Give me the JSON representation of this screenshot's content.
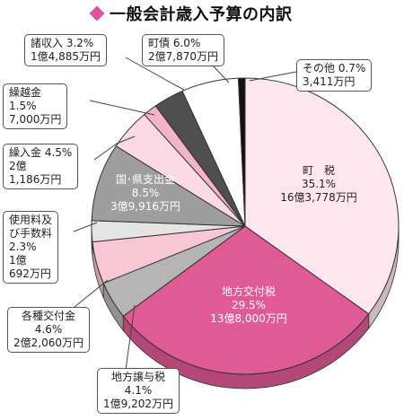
{
  "title": "一般会計歳入予算の内訳",
  "colors": {
    "title_mark": "#e0529a",
    "town_tax": "#fde6ee",
    "local_allocation_tax": "#e05a96",
    "local_transfer_tax": "#b5b5b5",
    "grants": "#f7c7d6",
    "fees": "#e4e4e4",
    "national_pref": "#9e9e9e",
    "transfers": "#fbd9e4",
    "carryover": "#f3b3c9",
    "misc": "#4f4f4f",
    "town_bonds": "#ffffff",
    "other": "#111111",
    "outline": "#333333"
  },
  "chart_data": {
    "type": "pie",
    "title": "一般会計歳入予算の内訳",
    "unit": "%",
    "slices": [
      {
        "name": "町　税",
        "value": 35.1,
        "amount": "16億3,778万円"
      },
      {
        "name": "地方交付税",
        "value": 29.5,
        "amount": "13億8,000万円"
      },
      {
        "name": "地方譲与税",
        "value": 4.1,
        "amount": "1億9,202万円"
      },
      {
        "name": "各種交付金",
        "value": 4.6,
        "amount": "2億2,060万円"
      },
      {
        "name": "使用料及び手数料",
        "value": 2.3,
        "amount": "1億692万円"
      },
      {
        "name": "国・県支出金",
        "value": 8.5,
        "amount": "3億9,916万円"
      },
      {
        "name": "繰入金",
        "value": 4.5,
        "amount": "2億1,186万円"
      },
      {
        "name": "繰越金",
        "value": 1.5,
        "amount": "7,000万円"
      },
      {
        "name": "諸収入",
        "value": 3.2,
        "amount": "1億4,885万円"
      },
      {
        "name": "町債",
        "value": 6.0,
        "amount": "2億7,870万円"
      },
      {
        "name": "その他",
        "value": 0.7,
        "amount": "3,411万円"
      }
    ]
  },
  "labels": {
    "town_tax": {
      "l1": "町　税",
      "l2": "35.1%",
      "l3": "16億3,778万円"
    },
    "local_allocation_tax": {
      "l1": "地方交付税",
      "l2": "29.5%",
      "l3": "13億8,000万円"
    },
    "national_pref": {
      "l1": "国･県支出金",
      "l2": "8.5%",
      "l3": "3億9,916万円"
    },
    "misc": {
      "l1": "諸収入 3.2%",
      "l2": "1億4,885万円"
    },
    "town_bonds": {
      "l1": "町債 6.0%",
      "l2": "2億7,870万円"
    },
    "other": {
      "l1": "その他 0.7%",
      "l2": "3,411万円"
    },
    "carryover": {
      "l1": "繰越金",
      "l2": "1.5%",
      "l3": "7,000万円"
    },
    "transfers": {
      "l1": "繰入金 4.5%",
      "l2": "2億",
      "l3": "1,186万円"
    },
    "fees": {
      "l1": "使用料及",
      "l2": "び手数料",
      "l3": "2.3%",
      "l4": "1億",
      "l5": "692万円"
    },
    "grants": {
      "l1": "各種交付金",
      "l2": "4.6%",
      "l3": "2億2,060万円"
    },
    "local_transfer_tax": {
      "l1": "地方譲与税",
      "l2": "4.1%",
      "l3": "1億9,202万円"
    }
  }
}
